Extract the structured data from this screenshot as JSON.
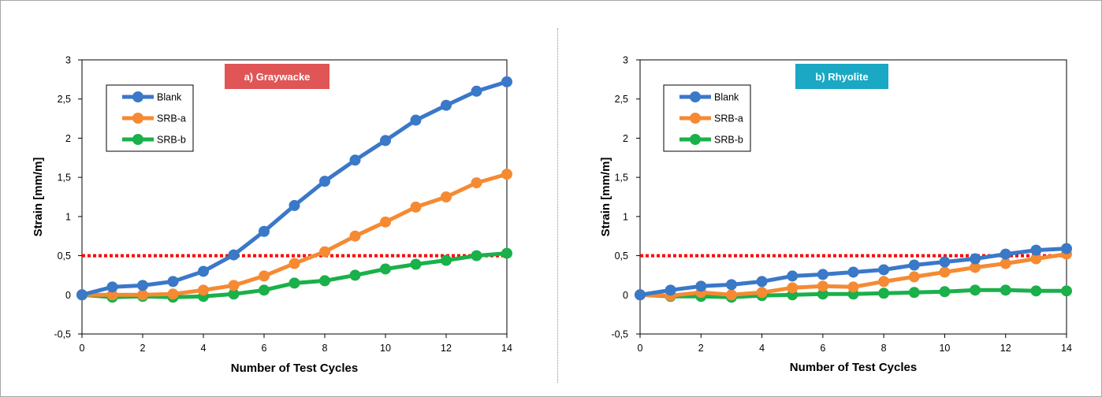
{
  "chart_data": [
    {
      "type": "line",
      "title": "a) Graywacke",
      "title_color": "#e05555",
      "xlabel": "Number of Test Cycles",
      "ylabel": "Strain [mm/m]",
      "xlim": [
        0,
        14
      ],
      "ylim": [
        -0.5,
        3
      ],
      "xticks": [
        "0",
        "2",
        "4",
        "6",
        "8",
        "10",
        "12",
        "14"
      ],
      "yticks": [
        "-0,5",
        "0",
        "0,5",
        "1",
        "1,5",
        "2",
        "2,5",
        "3"
      ],
      "grid": false,
      "legend_position": "top-left",
      "threshold": {
        "y": 0.5,
        "color": "#ff0000",
        "style": "dotted"
      },
      "x": [
        0,
        1,
        2,
        3,
        4,
        5,
        6,
        7,
        8,
        9,
        10,
        11,
        12,
        13,
        14
      ],
      "series": [
        {
          "name": "Blank",
          "color": "#3a78c8",
          "values": [
            0,
            0.1,
            0.12,
            0.17,
            0.3,
            0.51,
            0.81,
            1.14,
            1.45,
            1.72,
            1.97,
            2.23,
            2.42,
            2.6,
            2.72
          ]
        },
        {
          "name": "SRB-a",
          "color": "#f58a33",
          "values": [
            0,
            0.0,
            0.0,
            0.01,
            0.06,
            0.12,
            0.24,
            0.4,
            0.55,
            0.75,
            0.93,
            1.12,
            1.25,
            1.43,
            1.54
          ]
        },
        {
          "name": "SRB-b",
          "color": "#1ab04a",
          "values": [
            0,
            -0.03,
            -0.02,
            -0.03,
            -0.02,
            0.01,
            0.06,
            0.15,
            0.18,
            0.25,
            0.33,
            0.39,
            0.44,
            0.5,
            0.53
          ]
        }
      ]
    },
    {
      "type": "line",
      "title": "b) Rhyolite",
      "title_color": "#1aa8c4",
      "xlabel": "Number of Test Cycles",
      "ylabel": "Strain [mm/m]",
      "xlim": [
        0,
        14
      ],
      "ylim": [
        -0.5,
        3
      ],
      "xticks": [
        "0",
        "2",
        "4",
        "6",
        "8",
        "10",
        "12",
        "14"
      ],
      "yticks": [
        "-0,5",
        "0",
        "0,5",
        "1",
        "1,5",
        "2",
        "2,5",
        "3"
      ],
      "grid": false,
      "legend_position": "top-left",
      "threshold": {
        "y": 0.5,
        "color": "#ff0000",
        "style": "dotted"
      },
      "x": [
        0,
        1,
        2,
        3,
        4,
        5,
        6,
        7,
        8,
        9,
        10,
        11,
        12,
        13,
        14
      ],
      "series": [
        {
          "name": "Blank",
          "color": "#3a78c8",
          "values": [
            0,
            0.06,
            0.11,
            0.13,
            0.17,
            0.24,
            0.26,
            0.29,
            0.32,
            0.38,
            0.42,
            0.46,
            0.52,
            0.57,
            0.59
          ]
        },
        {
          "name": "SRB-a",
          "color": "#f58a33",
          "values": [
            0,
            -0.01,
            0.03,
            0.0,
            0.03,
            0.09,
            0.11,
            0.1,
            0.17,
            0.23,
            0.29,
            0.35,
            0.4,
            0.46,
            0.52
          ]
        },
        {
          "name": "SRB-b",
          "color": "#1ab04a",
          "values": [
            0,
            -0.02,
            -0.02,
            -0.03,
            -0.01,
            0.0,
            0.01,
            0.01,
            0.02,
            0.03,
            0.04,
            0.06,
            0.06,
            0.05,
            0.05
          ]
        }
      ]
    }
  ]
}
